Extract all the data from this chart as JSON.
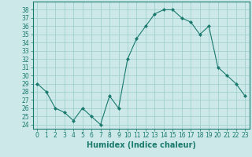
{
  "x": [
    0,
    1,
    2,
    3,
    4,
    5,
    6,
    7,
    8,
    9,
    10,
    11,
    12,
    13,
    14,
    15,
    16,
    17,
    18,
    19,
    20,
    21,
    22,
    23
  ],
  "y": [
    29,
    28,
    26,
    25.5,
    24.5,
    26,
    25,
    24,
    27.5,
    26,
    32,
    34.5,
    36,
    37.5,
    38,
    38,
    37,
    36.5,
    35,
    36,
    31,
    30,
    29,
    27.5
  ],
  "line_color": "#1a7a6e",
  "marker": "D",
  "marker_size": 2.0,
  "bg_color": "#cce8e8",
  "grid_color": "#99cccc",
  "xlabel": "Humidex (Indice chaleur)",
  "xlim": [
    -0.5,
    23.5
  ],
  "ylim": [
    23.5,
    39
  ],
  "yticks": [
    24,
    25,
    26,
    27,
    28,
    29,
    30,
    31,
    32,
    33,
    34,
    35,
    36,
    37,
    38
  ],
  "xticks": [
    0,
    1,
    2,
    3,
    4,
    5,
    6,
    7,
    8,
    9,
    10,
    11,
    12,
    13,
    14,
    15,
    16,
    17,
    18,
    19,
    20,
    21,
    22,
    23
  ],
  "tick_color": "#1a7a6e",
  "tick_fontsize": 5.5,
  "xlabel_fontsize": 7,
  "xlabel_color": "#1a7a6e",
  "spine_color": "#1a7a6e",
  "line_width": 0.8
}
